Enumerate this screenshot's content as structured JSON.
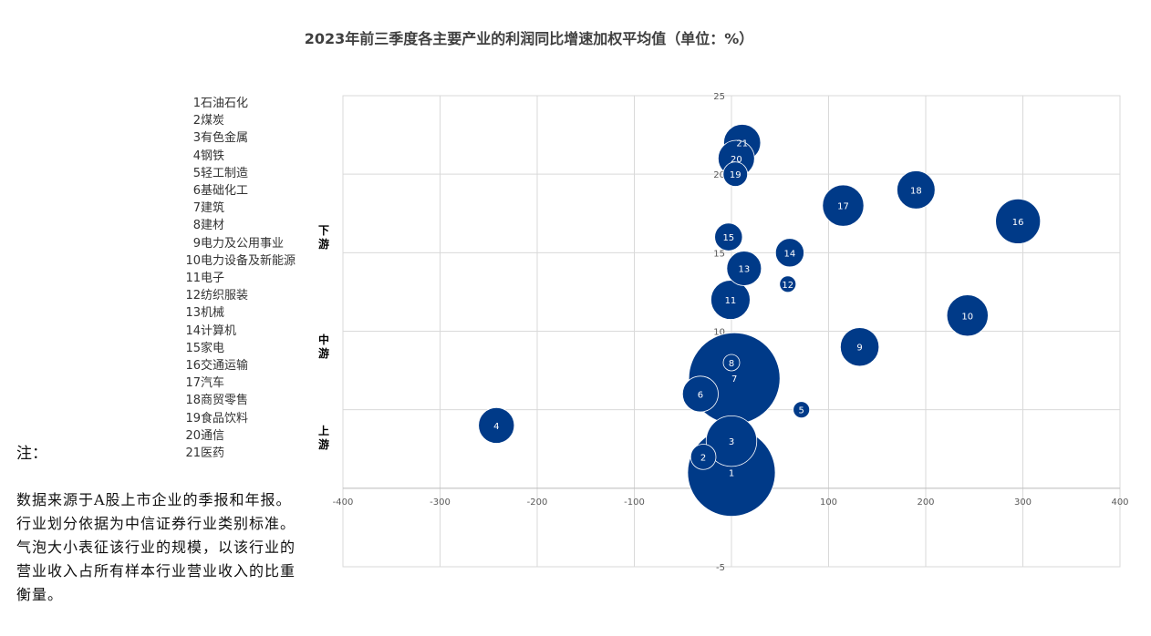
{
  "legend": {
    "items": [
      {
        "num": "1",
        "name": "石油石化"
      },
      {
        "num": "2",
        "name": "煤炭"
      },
      {
        "num": "3",
        "name": "有色金属"
      },
      {
        "num": "4",
        "name": "钢铁"
      },
      {
        "num": "5",
        "name": "轻工制造"
      },
      {
        "num": "6",
        "name": "基础化工"
      },
      {
        "num": "7",
        "name": "建筑"
      },
      {
        "num": "8",
        "name": "建材"
      },
      {
        "num": "9",
        "name": "电力及公用事业"
      },
      {
        "num": "10",
        "name": "电力设备及新能源"
      },
      {
        "num": "11",
        "name": "电子"
      },
      {
        "num": "12",
        "name": "纺织服装"
      },
      {
        "num": "13",
        "name": "机械"
      },
      {
        "num": "14",
        "name": "计算机"
      },
      {
        "num": "15",
        "name": "家电"
      },
      {
        "num": "16",
        "name": "交通运输"
      },
      {
        "num": "17",
        "name": "汽车"
      },
      {
        "num": "18",
        "name": "商贸零售"
      },
      {
        "num": "19",
        "name": "食品饮料"
      },
      {
        "num": "20",
        "name": "通信"
      },
      {
        "num": "21",
        "name": "医药"
      }
    ]
  },
  "tiers": {
    "downstream": "下游",
    "midstream": "中游",
    "upstream": "上游"
  },
  "notes": {
    "heading": "注：",
    "body": "数据来源于A股上市企业的季报和年报。行业划分依据为中信证券行业类别标准。气泡大小表征该行业的规模，以该行业的营业收入占所有样本行业营业收入的比重衡量。"
  },
  "chart_data": {
    "type": "bubble",
    "title": "2023年前三季度各主要产业的利润同比增速加权平均值（单位：%）",
    "xlim": [
      -400,
      400
    ],
    "ylim": [
      -5,
      25
    ],
    "x_ticks": [
      -400,
      -300,
      -200,
      -100,
      0,
      100,
      200,
      300,
      400
    ],
    "y_ticks": [
      -5,
      0,
      5,
      10,
      15,
      20,
      25
    ],
    "grid": true,
    "bubble_color": "#003A88",
    "points": [
      {
        "label": "1",
        "x": 0,
        "y": 1,
        "size": 18.0
      },
      {
        "label": "2",
        "x": -29,
        "y": 2,
        "size": 1.5
      },
      {
        "label": "3",
        "x": 0,
        "y": 3,
        "size": 6.0
      },
      {
        "label": "4",
        "x": -242,
        "y": 4,
        "size": 3.0
      },
      {
        "label": "5",
        "x": 72,
        "y": 5,
        "size": 0.4
      },
      {
        "label": "6",
        "x": -32,
        "y": 6,
        "size": 3.0
      },
      {
        "label": "7",
        "x": 3,
        "y": 7,
        "size": 19.5
      },
      {
        "label": "8",
        "x": 0,
        "y": 8,
        "size": 0.5
      },
      {
        "label": "9",
        "x": 132,
        "y": 9,
        "size": 3.5
      },
      {
        "label": "10",
        "x": 243,
        "y": 11,
        "size": 4.0
      },
      {
        "label": "11",
        "x": -1,
        "y": 12,
        "size": 3.6
      },
      {
        "label": "12",
        "x": 58,
        "y": 13,
        "size": 0.2
      },
      {
        "label": "13",
        "x": 13,
        "y": 14,
        "size": 2.8
      },
      {
        "label": "14",
        "x": 60,
        "y": 15,
        "size": 1.9
      },
      {
        "label": "15",
        "x": -3,
        "y": 16,
        "size": 1.8
      },
      {
        "label": "16",
        "x": 295,
        "y": 17,
        "size": 4.7
      },
      {
        "label": "17",
        "x": 115,
        "y": 18,
        "size": 4.0
      },
      {
        "label": "18",
        "x": 190,
        "y": 19,
        "size": 3.4
      },
      {
        "label": "19",
        "x": 4,
        "y": 20,
        "size": 1.4
      },
      {
        "label": "20",
        "x": 5,
        "y": 21,
        "size": 3.1
      },
      {
        "label": "21",
        "x": 11,
        "y": 22,
        "size": 3.2
      }
    ]
  }
}
